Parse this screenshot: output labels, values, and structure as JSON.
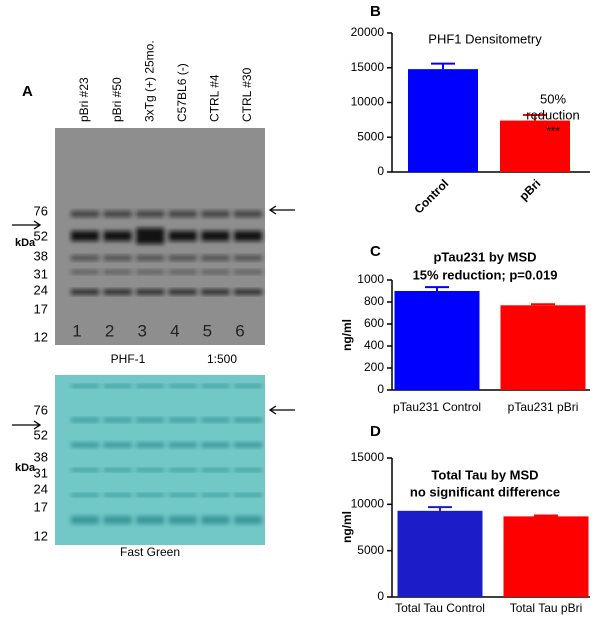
{
  "panel_labels": [
    "A",
    "B",
    "C",
    "D"
  ],
  "blot": {
    "lanes": [
      "pBri #23",
      "pBri #50",
      "3xTg (+) 25mo.",
      "C57BL6 (-)",
      "CTRL #4",
      "CTRL #30"
    ],
    "lane_numbers": [
      1,
      2,
      3,
      4,
      5,
      6
    ],
    "markers": [
      76,
      52,
      38,
      31,
      24,
      17,
      12
    ],
    "unit": "kDa",
    "antibody": "PHF-1",
    "dilution": "1:500",
    "stain": "Fast Green"
  },
  "chart_data": [
    {
      "type": "bar",
      "title": "PHF1 Densitometry",
      "categories": [
        "Control",
        "pBri"
      ],
      "values": [
        14800,
        7400
      ],
      "errors": [
        800,
        800
      ],
      "colors": [
        "#0000ff",
        "#ff0000"
      ],
      "annotations": [
        "50%",
        "reduction",
        "***"
      ],
      "ylim": [
        0,
        20000
      ],
      "yticks": [
        0,
        5000,
        10000,
        15000,
        20000
      ]
    },
    {
      "type": "bar",
      "title": "pTau231 by MSD",
      "subtitle": "15% reduction; p=0.019",
      "ylabel": "ng/ml",
      "categories": [
        "pTau231 Control",
        "pTau231 pBri"
      ],
      "values": [
        900,
        770
      ],
      "errors": [
        35,
        10
      ],
      "colors": [
        "#0000ff",
        "#ff0000"
      ],
      "ylim": [
        0,
        1000
      ],
      "yticks": [
        0,
        200,
        400,
        600,
        800,
        1000
      ]
    },
    {
      "type": "bar",
      "title": "Total Tau by MSD",
      "subtitle": "no significant difference",
      "ylabel": "ng/ml",
      "categories": [
        "Total Tau Control",
        "Total Tau pBri"
      ],
      "values": [
        9300,
        8700
      ],
      "errors": [
        400,
        100
      ],
      "colors": [
        "#1c1cc8",
        "#ff0000"
      ],
      "ylim": [
        0,
        15000
      ],
      "yticks": [
        0,
        5000,
        10000,
        15000
      ]
    }
  ]
}
